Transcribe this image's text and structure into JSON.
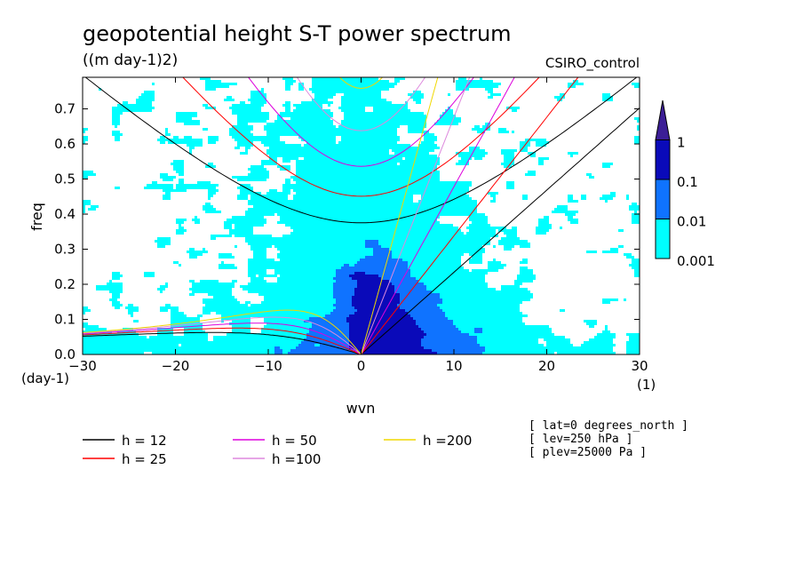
{
  "chart_data": {
    "type": "heatmap",
    "title": "geopotential height S-T power spectrum",
    "units": "((m day-1)2)",
    "dataset": "CSIRO_control",
    "xlabel": "wvn",
    "ylabel": "freq",
    "x_unit_label": "(1)",
    "y_unit_label": "(day-1)",
    "xlim": [
      -30,
      30
    ],
    "ylim": [
      0,
      0.79
    ],
    "xticks": [
      -30,
      -20,
      -10,
      0,
      10,
      20,
      30
    ],
    "yticks": [
      0.0,
      0.1,
      0.2,
      0.3,
      0.4,
      0.5,
      0.6,
      0.7
    ],
    "contour_levels": [
      0.001,
      0.01,
      0.1,
      1
    ],
    "colorbar": [
      {
        "level": "0.001",
        "color": "#00ffff"
      },
      {
        "level": "0.01",
        "color": "#0f73ff"
      },
      {
        "level": "0.1",
        "color": "#0a0ab9"
      },
      {
        "level": "1",
        "color": "#3c1e96"
      }
    ],
    "dispersion_curves": {
      "type": "line",
      "series": [
        {
          "name": "h = 12",
          "h": 12,
          "color": "#000000"
        },
        {
          "name": "h = 25",
          "h": 25,
          "color": "#ff0000"
        },
        {
          "name": "h = 50",
          "h": 50,
          "color": "#dd00dd"
        },
        {
          "name": "h =100",
          "h": 100,
          "color": "#dd88dd"
        },
        {
          "name": "h =200",
          "h": 200,
          "color": "#f0d800"
        }
      ]
    },
    "annotations": [
      "[ lat=0 degrees_north ]",
      "[ lev=250 hPa ]",
      "[ plev=25000 Pa ]"
    ]
  }
}
